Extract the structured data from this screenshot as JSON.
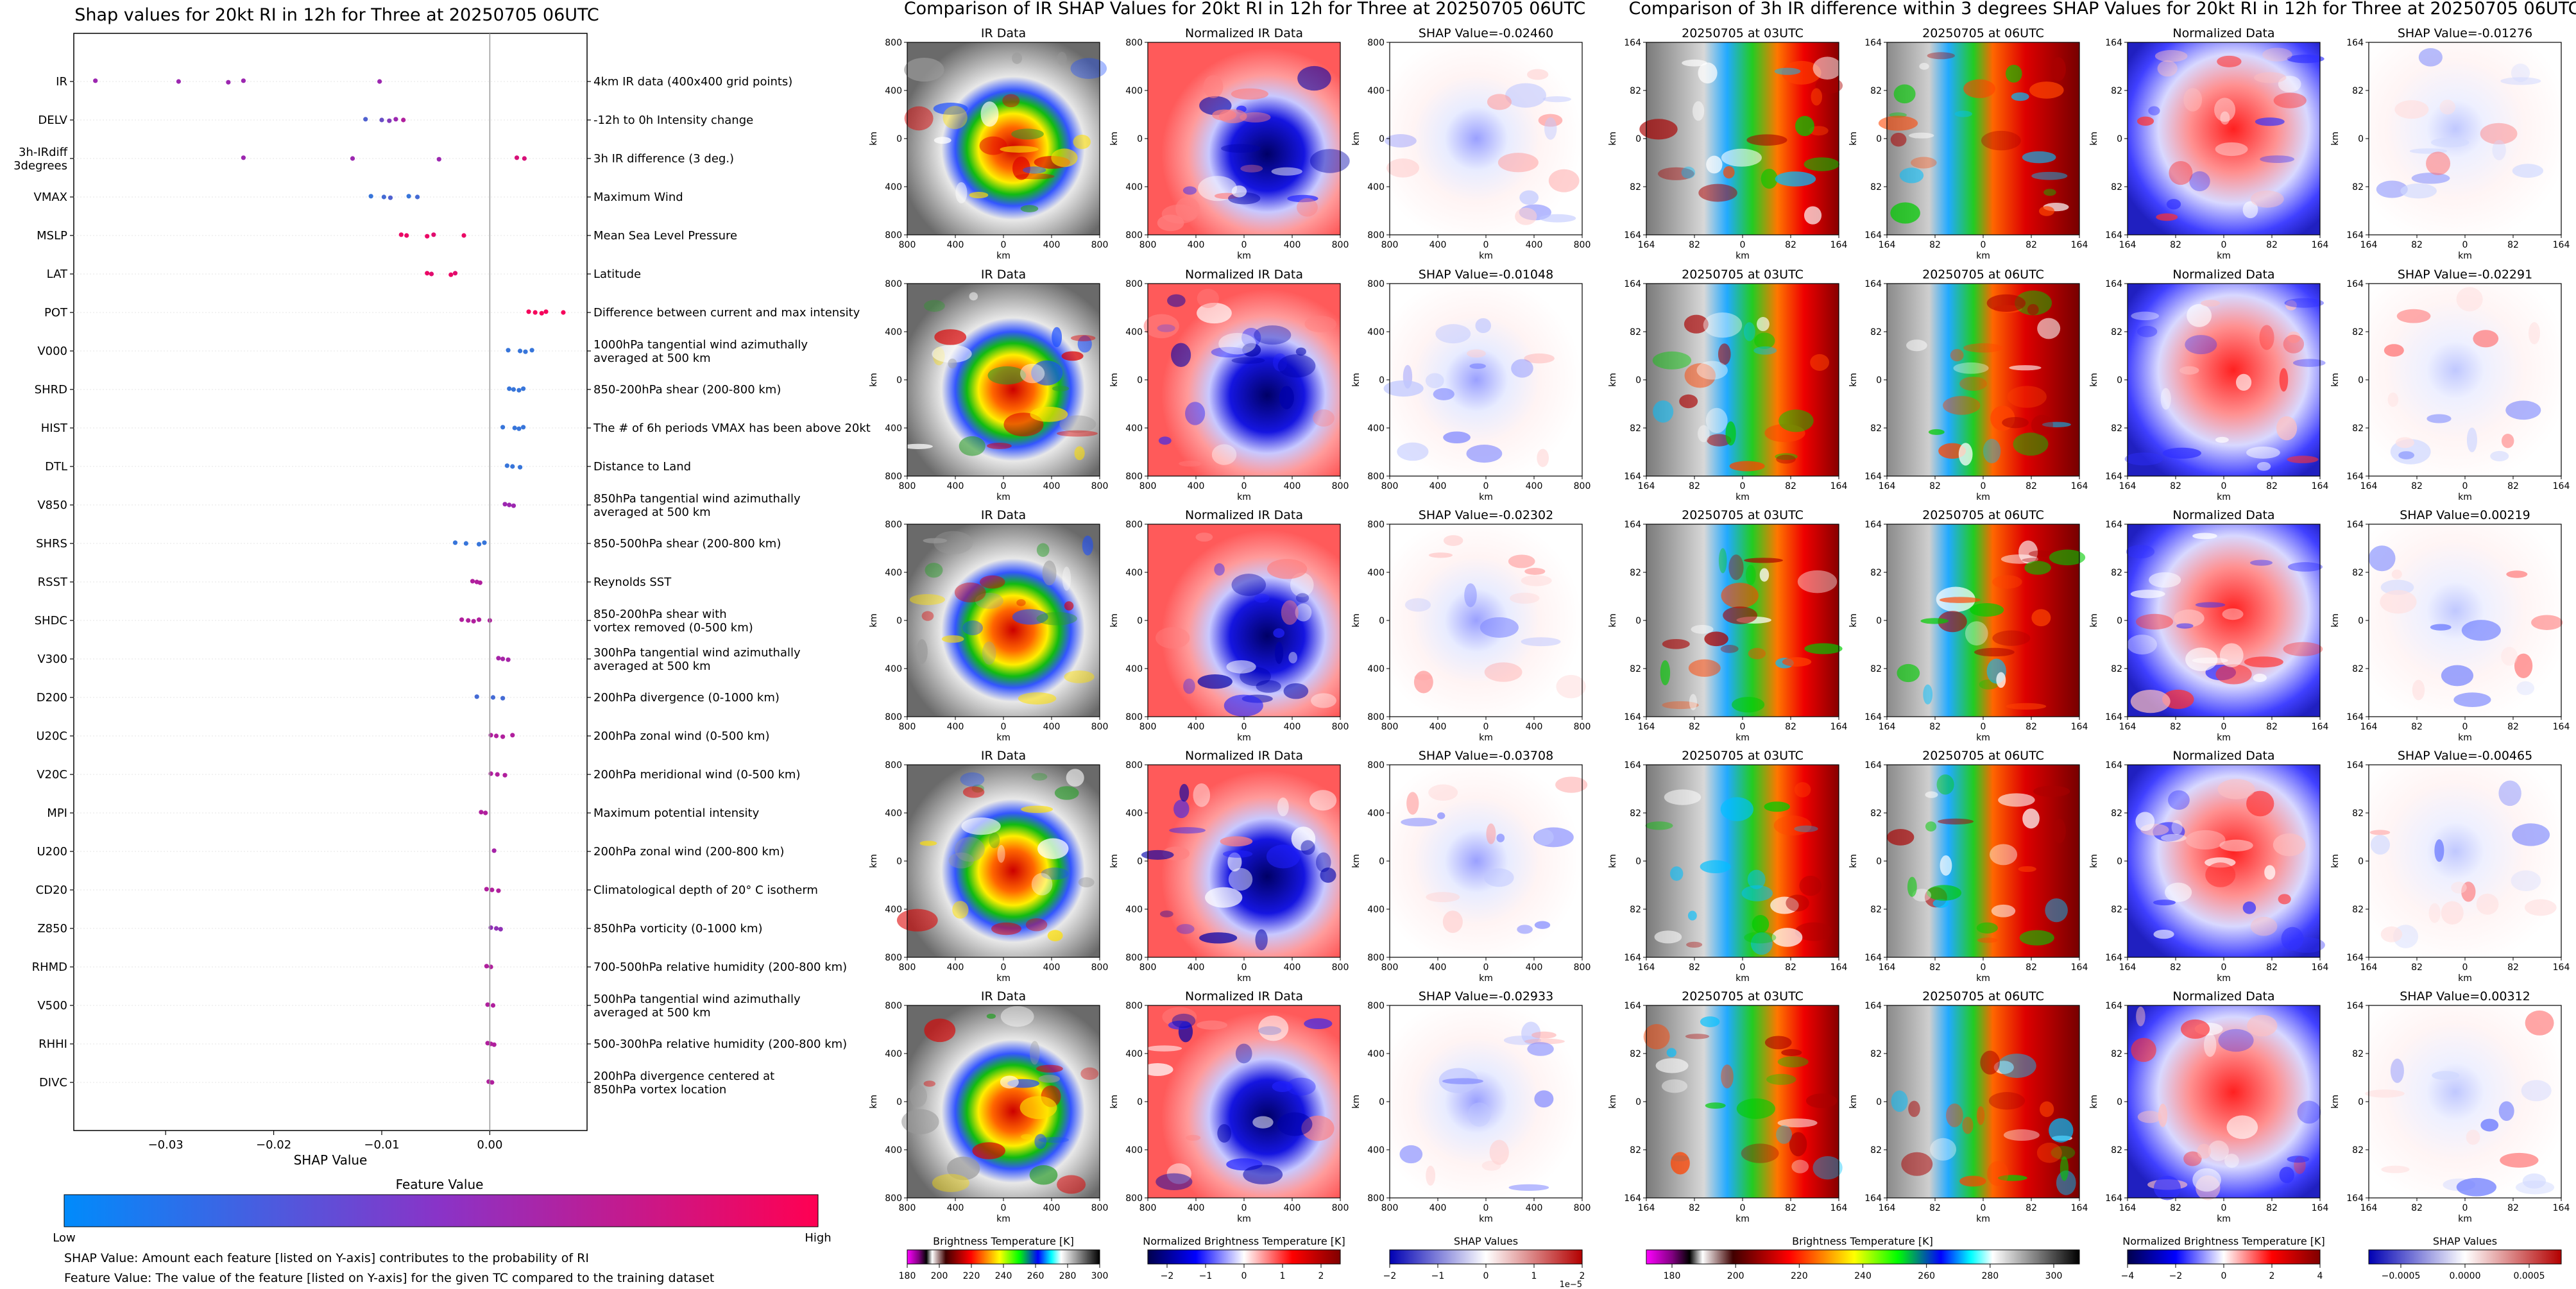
{
  "figure": {
    "left_title": "Shap values for 20kt RI in 12h for Three at 20250705 06UTC",
    "mid_title": "Comparison of IR SHAP Values for 20kt RI in 12h for Three at 20250705 06UTC",
    "right_title": "Comparison of 3h IR difference within 3 degrees SHAP Values for 20kt RI in 12h for Three at 20250705 06UTC"
  },
  "beeswarm": {
    "xlabel": "SHAP Value",
    "xticks": [
      "−0.03",
      "−0.02",
      "−0.01",
      "0.00"
    ],
    "xtick_values": [
      -0.03,
      -0.02,
      -0.01,
      0.0
    ],
    "xlim": [
      -0.0385,
      0.009
    ],
    "colorbar_title": "Feature Value",
    "colorbar_low": "Low",
    "colorbar_high": "High",
    "colors": {
      "low": "#1e88e5",
      "mid": "#9c27b0",
      "high": "#ff0052"
    },
    "footnote_1": "SHAP Value: Amount each feature [listed on Y-axis] contributes to the probability of RI",
    "footnote_2": "Feature Value: The value of the feature [listed on Y-axis] for the given TC compared to the training dataset"
  },
  "chart_data": [
    {
      "type": "scatter",
      "title": "Shap values for 20kt RI in 12h for Three at 20250705 06UTC",
      "xlabel": "SHAP Value",
      "ylabel": "",
      "xlim": [
        -0.0385,
        0.009
      ],
      "features": [
        {
          "name": "IR",
          "desc": "4km IR data (400x400 grid points)",
          "points": [
            [
              -0.0365,
              0.5
            ],
            [
              -0.0288,
              0.5
            ],
            [
              -0.0242,
              0.5
            ],
            [
              -0.0228,
              0.5
            ],
            [
              -0.0102,
              0.5
            ]
          ]
        },
        {
          "name": "DELV",
          "desc": "-12h to 0h Intensity change",
          "points": [
            [
              -0.0115,
              0.2
            ],
            [
              -0.01,
              0.3
            ],
            [
              -0.0093,
              0.4
            ],
            [
              -0.0087,
              0.5
            ],
            [
              -0.008,
              0.6
            ]
          ]
        },
        {
          "name": "3h-IRdiff\n3degrees",
          "desc": "3h IR difference (3 deg.)",
          "points": [
            [
              -0.0228,
              0.5
            ],
            [
              -0.0127,
              0.5
            ],
            [
              -0.0047,
              0.5
            ],
            [
              0.0025,
              0.8
            ],
            [
              0.0032,
              0.8
            ]
          ]
        },
        {
          "name": "VMAX",
          "desc": "Maximum Wind",
          "points": [
            [
              -0.011,
              0.1
            ],
            [
              -0.0098,
              0.15
            ],
            [
              -0.0092,
              0.2
            ],
            [
              -0.0075,
              0.1
            ],
            [
              -0.0067,
              0.15
            ]
          ]
        },
        {
          "name": "MSLP",
          "desc": "Mean Sea Level Pressure",
          "points": [
            [
              -0.0082,
              0.9
            ],
            [
              -0.0077,
              0.9
            ],
            [
              -0.0058,
              0.9
            ],
            [
              -0.0052,
              0.85
            ],
            [
              -0.0024,
              0.9
            ]
          ]
        },
        {
          "name": "LAT",
          "desc": "Latitude",
          "points": [
            [
              -0.0058,
              0.9
            ],
            [
              -0.0054,
              0.85
            ],
            [
              -0.0036,
              0.9
            ],
            [
              -0.0032,
              0.85
            ]
          ]
        },
        {
          "name": "POT",
          "desc": "Difference between current and max intensity",
          "points": [
            [
              0.0036,
              0.95
            ],
            [
              0.0042,
              0.95
            ],
            [
              0.0048,
              0.95
            ],
            [
              0.0052,
              0.95
            ],
            [
              0.0068,
              0.95
            ]
          ]
        },
        {
          "name": "V000",
          "desc": "1000hPa tangential wind azimuthally\naveraged at 500 km",
          "points": [
            [
              0.0017,
              0.1
            ],
            [
              0.0028,
              0.1
            ],
            [
              0.0033,
              0.1
            ],
            [
              0.0039,
              0.1
            ]
          ]
        },
        {
          "name": "SHRD",
          "desc": "850-200hPa shear (200-800 km)",
          "points": [
            [
              0.0018,
              0.1
            ],
            [
              0.0022,
              0.1
            ],
            [
              0.0027,
              0.1
            ],
            [
              0.0031,
              0.1
            ]
          ]
        },
        {
          "name": "HIST",
          "desc": "The # of 6h periods VMAX has been above 20kt",
          "points": [
            [
              0.0012,
              0.1
            ],
            [
              0.0023,
              0.1
            ],
            [
              0.0027,
              0.1
            ],
            [
              0.0031,
              0.1
            ]
          ]
        },
        {
          "name": "DTL",
          "desc": "Distance to Land",
          "points": [
            [
              0.0016,
              0.1
            ],
            [
              0.0021,
              0.1
            ],
            [
              0.0028,
              0.1
            ]
          ]
        },
        {
          "name": "V850",
          "desc": "850hPa tangential wind azimuthally\naveraged at 500 km",
          "points": [
            [
              0.0014,
              0.5
            ],
            [
              0.0018,
              0.5
            ],
            [
              0.0022,
              0.5
            ]
          ]
        },
        {
          "name": "SHRS",
          "desc": "850-500hPa shear (200-800 km)",
          "points": [
            [
              -0.0032,
              0.1
            ],
            [
              -0.0022,
              0.1
            ],
            [
              -0.001,
              0.1
            ],
            [
              -0.0005,
              0.1
            ]
          ]
        },
        {
          "name": "RSST",
          "desc": "Reynolds SST",
          "points": [
            [
              -0.0016,
              0.6
            ],
            [
              -0.0012,
              0.6
            ],
            [
              -0.0009,
              0.6
            ]
          ]
        },
        {
          "name": "SHDC",
          "desc": "850-200hPa shear with\nvortex removed (0-500 km)",
          "points": [
            [
              -0.0026,
              0.6
            ],
            [
              -0.002,
              0.6
            ],
            [
              -0.0015,
              0.6
            ],
            [
              -0.001,
              0.6
            ],
            [
              0.0,
              0.6
            ]
          ]
        },
        {
          "name": "V300",
          "desc": "300hPa tangential wind azimuthally\naveraged at 500 km",
          "points": [
            [
              0.0008,
              0.55
            ],
            [
              0.0012,
              0.55
            ],
            [
              0.0017,
              0.55
            ]
          ]
        },
        {
          "name": "D200",
          "desc": "200hPa divergence (0-1000 km)",
          "points": [
            [
              -0.0012,
              0.15
            ],
            [
              0.0003,
              0.15
            ],
            [
              0.0012,
              0.15
            ]
          ]
        },
        {
          "name": "U20C",
          "desc": "200hPa zonal wind (0-500 km)",
          "points": [
            [
              0.0001,
              0.6
            ],
            [
              0.0006,
              0.6
            ],
            [
              0.0012,
              0.6
            ],
            [
              0.0021,
              0.6
            ]
          ]
        },
        {
          "name": "V20C",
          "desc": "200hPa meridional wind (0-500 km)",
          "points": [
            [
              0.0001,
              0.6
            ],
            [
              0.0007,
              0.6
            ],
            [
              0.0014,
              0.6
            ]
          ]
        },
        {
          "name": "MPI",
          "desc": "Maximum potential intensity",
          "points": [
            [
              -0.0008,
              0.6
            ],
            [
              -0.0004,
              0.6
            ]
          ]
        },
        {
          "name": "U200",
          "desc": "200hPa zonal wind (200-800 km)",
          "points": [
            [
              0.0004,
              0.55
            ]
          ]
        },
        {
          "name": "CD20",
          "desc": "Climatological depth of 20° C isotherm",
          "points": [
            [
              -0.0003,
              0.6
            ],
            [
              0.0002,
              0.6
            ],
            [
              0.0008,
              0.6
            ]
          ]
        },
        {
          "name": "Z850",
          "desc": "850hPa vorticity (0-1000 km)",
          "points": [
            [
              0.0001,
              0.45
            ],
            [
              0.0006,
              0.45
            ],
            [
              0.001,
              0.45
            ]
          ]
        },
        {
          "name": "RHMD",
          "desc": "700-500hPa relative humidity (200-800 km)",
          "points": [
            [
              -0.0003,
              0.6
            ],
            [
              0.0001,
              0.6
            ]
          ]
        },
        {
          "name": "V500",
          "desc": "500hPa tangential wind azimuthally\naveraged at 500 km",
          "points": [
            [
              -0.0002,
              0.6
            ],
            [
              0.0003,
              0.6
            ]
          ]
        },
        {
          "name": "RHHI",
          "desc": "500-300hPa relative humidity (200-800 km)",
          "points": [
            [
              -0.0002,
              0.6
            ],
            [
              0.0001,
              0.6
            ],
            [
              0.0004,
              0.6
            ]
          ]
        },
        {
          "name": "DIVC",
          "desc": "200hPa divergence centered at\n850hPa vortex location",
          "points": [
            [
              -0.0001,
              0.6
            ],
            [
              0.0002,
              0.6
            ]
          ]
        }
      ]
    },
    {
      "type": "heatmap",
      "title": "Comparison of IR SHAP Values for 20kt RI in 12h for Three at 20250705 06UTC",
      "panel_titles": [
        "IR Data",
        "Normalized IR Data",
        "SHAP Value=-0.02460",
        "SHAP Value=-0.01048",
        "SHAP Value=-0.02302",
        "SHAP Value=-0.03708",
        "SHAP Value=-0.02933"
      ],
      "shap_values": [
        -0.0246,
        -0.01048,
        -0.02302,
        -0.03708,
        -0.02933
      ],
      "xlabel": "km",
      "ylabel": "km",
      "tick_labels": [
        "800",
        "400",
        "0",
        "400",
        "800"
      ],
      "colorbars": [
        {
          "label": "Brightness Temperature [K]",
          "ticks": [
            "180",
            "200",
            "220",
            "240",
            "260",
            "280",
            "300"
          ]
        },
        {
          "label": "Normalized Brightness Temperature [K]",
          "ticks": [
            "−2",
            "−1",
            "0",
            "1",
            "2"
          ]
        },
        {
          "label": "SHAP Values",
          "ticks": [
            "−2",
            "−1",
            "0",
            "1",
            "2"
          ],
          "offset": "1e−5"
        }
      ]
    },
    {
      "type": "heatmap",
      "title": "Comparison of 3h IR difference within 3 degrees SHAP Values for 20kt RI in 12h for Three at 20250705 06UTC",
      "panel_titles": [
        "20250705 at 03UTC",
        "20250705 at 06UTC",
        "Normalized Data",
        "SHAP Value=-0.01276",
        "SHAP Value=-0.02291",
        "SHAP Value=0.00219",
        "SHAP Value=-0.00465",
        "SHAP Value=0.00312"
      ],
      "shap_values": [
        -0.01276,
        -0.02291,
        0.00219,
        -0.00465,
        0.00312
      ],
      "xlabel": "km",
      "ylabel": "km",
      "tick_labels": [
        "164",
        "82",
        "0",
        "82",
        "164"
      ],
      "colorbars": [
        {
          "label": "Brightness Temperature [K]",
          "ticks": [
            "180",
            "200",
            "220",
            "240",
            "260",
            "280",
            "300"
          ]
        },
        {
          "label": "Normalized Brightness Temperature [K]",
          "ticks": [
            "−4",
            "−2",
            "0",
            "2",
            "4"
          ]
        },
        {
          "label": "SHAP Values",
          "ticks": [
            "−0.0005",
            "0.0000",
            "0.0005"
          ]
        }
      ]
    }
  ]
}
